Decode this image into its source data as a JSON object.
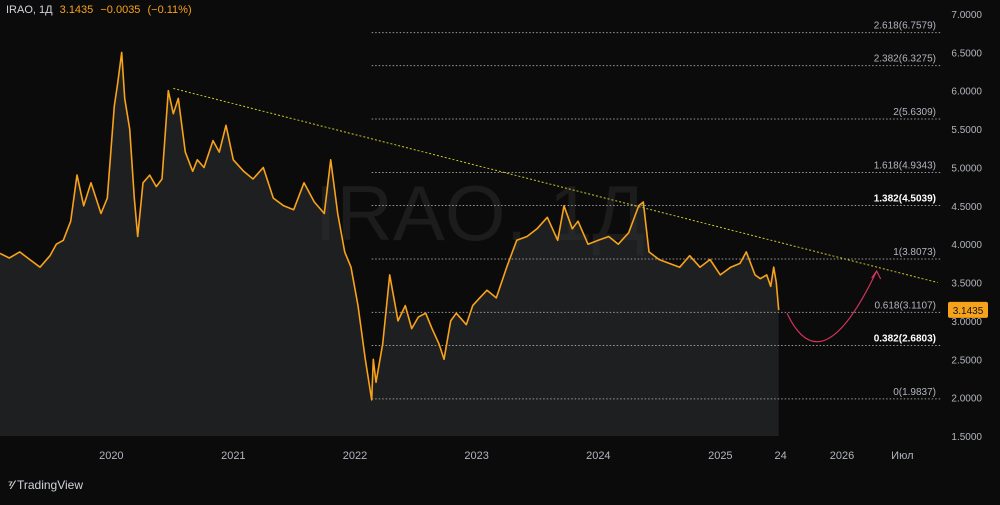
{
  "header": {
    "symbol": "IRAO, 1Д",
    "last": "3.1435",
    "change": "−0.0035",
    "change_pct": "(−0.11%)"
  },
  "watermark": "IRAO, 1Д",
  "branding": {
    "name": "TradingView"
  },
  "colors": {
    "background": "#0b0b0b",
    "price_line": "#f7a21b",
    "area_fill": "#2b2d2e",
    "trend_line": "#c8c82a",
    "projection_arrow": "#d1335b",
    "fib_line": "#9a9a9a",
    "axis_text": "#b2b5be",
    "last_price_badge": "#f7a21b"
  },
  "chart_data": {
    "type": "line",
    "y_axis": {
      "min": 1.5,
      "max": 7.0,
      "ticks": [
        "1.5000",
        "2.0000",
        "2.5000",
        "3.0000",
        "3.5000",
        "4.0000",
        "4.5000",
        "5.0000",
        "5.5000",
        "6.0000",
        "6.5000",
        "7.0000"
      ],
      "position": "right"
    },
    "x_axis": {
      "tick_labels": [
        "2020",
        "2021",
        "2022",
        "2023",
        "2024",
        "2025",
        "24",
        "2026",
        "Июл"
      ],
      "tick_dates": [
        "2020-01-01",
        "2021-01-01",
        "2022-01-01",
        "2023-01-01",
        "2024-01-01",
        "2025-01-01",
        "2025-07-01",
        "2026-01-01",
        "2026-07-01"
      ],
      "range": [
        "2019-02-01",
        "2026-11-15"
      ]
    },
    "last_price": {
      "value": 3.1435,
      "label": "3.1435"
    },
    "series": [
      {
        "x": [
          "2019-02-01",
          "2019-03-01",
          "2019-04-01",
          "2019-05-01",
          "2019-06-01",
          "2019-07-01",
          "2019-07-20",
          "2019-08-10",
          "2019-09-01",
          "2019-09-20",
          "2019-10-10",
          "2019-11-01",
          "2019-12-01",
          "2019-12-20",
          "2020-01-10",
          "2020-01-20",
          "2020-02-01",
          "2020-02-10",
          "2020-02-25",
          "2020-03-10",
          "2020-03-20",
          "2020-04-05",
          "2020-04-25",
          "2020-05-15",
          "2020-06-01",
          "2020-06-20",
          "2020-07-05",
          "2020-07-20",
          "2020-08-10",
          "2020-09-01",
          "2020-09-15",
          "2020-10-05",
          "2020-11-01",
          "2020-11-20",
          "2020-12-10",
          "2021-01-01",
          "2021-02-01",
          "2021-03-01",
          "2021-04-01",
          "2021-05-01",
          "2021-06-01",
          "2021-07-01",
          "2021-08-01",
          "2021-09-01",
          "2021-10-01",
          "2021-10-20",
          "2021-11-10",
          "2021-12-01",
          "2021-12-20",
          "2022-01-10",
          "2022-02-01",
          "2022-02-20",
          "2022-02-25",
          "2022-03-05",
          "2022-03-25",
          "2022-04-15",
          "2022-05-10",
          "2022-06-01",
          "2022-06-20",
          "2022-07-10",
          "2022-08-01",
          "2022-08-20",
          "2022-09-10",
          "2022-09-25",
          "2022-10-15",
          "2022-11-01",
          "2022-12-01",
          "2022-12-20",
          "2023-01-10",
          "2023-02-01",
          "2023-03-01",
          "2023-04-01",
          "2023-05-01",
          "2023-06-01",
          "2023-07-01",
          "2023-08-01",
          "2023-09-01",
          "2023-09-20",
          "2023-10-15",
          "2023-11-01",
          "2023-12-01",
          "2024-01-01",
          "2024-02-01",
          "2024-03-01",
          "2024-04-01",
          "2024-05-01",
          "2024-05-15",
          "2024-06-01",
          "2024-07-01",
          "2024-08-01",
          "2024-09-01",
          "2024-10-01",
          "2024-11-01",
          "2024-12-01",
          "2025-01-01",
          "2025-02-01",
          "2025-03-01",
          "2025-03-20",
          "2025-04-15",
          "2025-05-01",
          "2025-05-20",
          "2025-06-01",
          "2025-06-10",
          "2025-06-18",
          "2025-06-25"
        ],
        "y": [
          3.88,
          3.82,
          3.9,
          3.8,
          3.7,
          3.85,
          4.0,
          4.05,
          4.3,
          4.9,
          4.5,
          4.8,
          4.4,
          4.6,
          5.8,
          6.1,
          6.5,
          5.9,
          5.5,
          4.6,
          4.1,
          4.8,
          4.9,
          4.75,
          4.85,
          6.0,
          5.7,
          5.9,
          5.2,
          4.95,
          5.1,
          5.0,
          5.35,
          5.2,
          5.55,
          5.1,
          4.95,
          4.85,
          5.0,
          4.6,
          4.5,
          4.45,
          4.8,
          4.55,
          4.4,
          5.1,
          4.4,
          3.9,
          3.7,
          3.2,
          2.5,
          1.97,
          2.5,
          2.2,
          2.7,
          3.6,
          3.0,
          3.2,
          2.9,
          3.05,
          3.1,
          2.9,
          2.7,
          2.5,
          3.0,
          3.1,
          2.95,
          3.2,
          3.3,
          3.4,
          3.3,
          3.7,
          4.05,
          4.1,
          4.2,
          4.35,
          4.05,
          4.5,
          4.2,
          4.3,
          4.0,
          4.05,
          4.1,
          4.0,
          4.15,
          4.5,
          4.55,
          3.9,
          3.8,
          3.75,
          3.7,
          3.85,
          3.7,
          3.8,
          3.6,
          3.7,
          3.75,
          3.9,
          3.6,
          3.55,
          3.6,
          3.45,
          3.7,
          3.5,
          3.14
        ]
      }
    ],
    "trend_line": {
      "x": [
        "2020-07-05",
        "2026-10-15"
      ],
      "y": [
        6.03,
        3.5
      ]
    },
    "projection_arrow": {
      "x": [
        "2025-07-20",
        "2025-11-01",
        "2026-04-15"
      ],
      "y": [
        3.1,
        2.6,
        3.65
      ]
    },
    "fibonacci": {
      "start_date": "2022-02-20",
      "levels": [
        {
          "ratio": "2.618",
          "value": 6.7579,
          "label": "2.618(6.7579)",
          "bold": false
        },
        {
          "ratio": "2.382",
          "value": 6.3275,
          "label": "2.382(6.3275)",
          "bold": false
        },
        {
          "ratio": "2",
          "value": 5.6309,
          "label": "2(5.6309)",
          "bold": false
        },
        {
          "ratio": "1.618",
          "value": 4.9343,
          "label": "1.618(4.9343)",
          "bold": false
        },
        {
          "ratio": "1.382",
          "value": 4.5039,
          "label": "1.382(4.5039)",
          "bold": true
        },
        {
          "ratio": "1",
          "value": 3.8073,
          "label": "1(3.8073)",
          "bold": false
        },
        {
          "ratio": "0.618",
          "value": 3.1107,
          "label": "0.618(3.1107)",
          "bold": false
        },
        {
          "ratio": "0.382",
          "value": 2.6803,
          "label": "0.382(2.6803)",
          "bold": true
        },
        {
          "ratio": "0",
          "value": 1.9837,
          "label": "0(1.9837)",
          "bold": false
        }
      ]
    }
  }
}
